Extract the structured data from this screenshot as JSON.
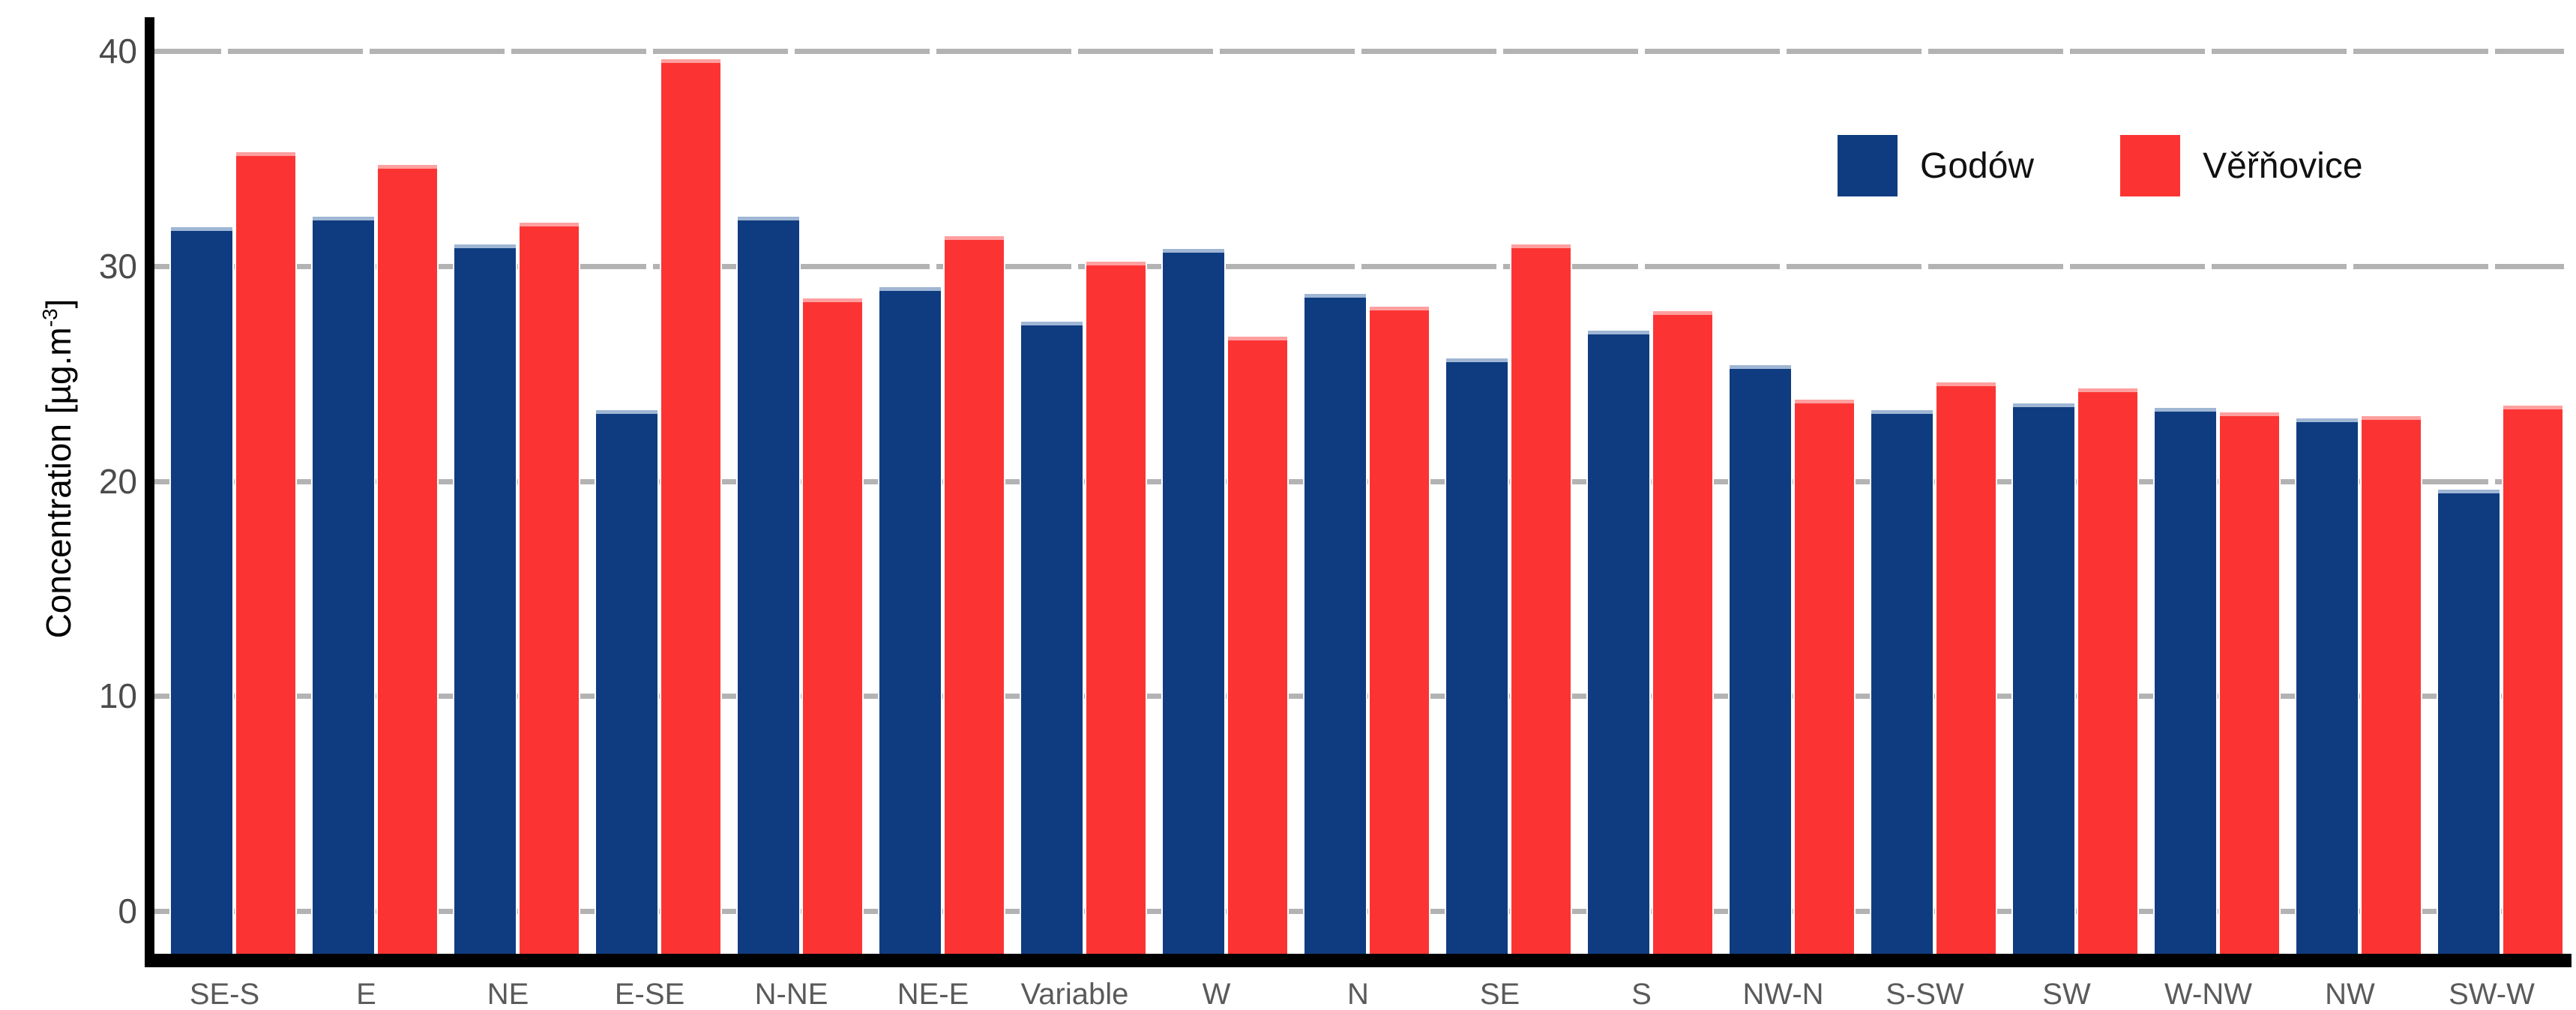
{
  "chart_data": {
    "type": "bar",
    "title": "",
    "ylabel": "Concentration [µg.m⁻³]",
    "ylabel_parts": {
      "main": "Concentration [µg.m",
      "sup": "-3",
      "close": "]"
    },
    "xlabel": "",
    "categories": [
      "SE-S",
      "E",
      "NE",
      "E-SE",
      "N-NE",
      "NE-E",
      "Variable",
      "W",
      "N",
      "SE",
      "S",
      "NW-N",
      "S-SW",
      "SW",
      "W-NW",
      "NW",
      "SW-W"
    ],
    "series": [
      {
        "name": "Godów",
        "color": "#0f3c80",
        "values": [
          31.8,
          32.3,
          31.0,
          23.3,
          32.3,
          29.0,
          27.4,
          30.8,
          28.7,
          25.7,
          27.0,
          25.4,
          23.3,
          23.6,
          23.4,
          22.9,
          19.6
        ]
      },
      {
        "name": "Věřňovice",
        "color": "#fb3433",
        "values": [
          35.3,
          34.7,
          32.0,
          39.6,
          28.5,
          31.4,
          30.2,
          26.7,
          28.1,
          31.0,
          27.9,
          23.8,
          24.6,
          24.3,
          23.2,
          23.0,
          23.5
        ]
      }
    ],
    "y_ticks": [
      0,
      10,
      20,
      30,
      40
    ],
    "ylim": [
      -2,
      41.3
    ],
    "grid": "horizontal gray dashed, gaps at category centers",
    "legend_position": "top-right inside plot",
    "colors": {
      "grid": "#b3b3b3",
      "axis": "#000000",
      "y_tick_text": "#4b4b4b",
      "x_tick_text": "#5a5a5a",
      "background": "#ffffff"
    }
  }
}
